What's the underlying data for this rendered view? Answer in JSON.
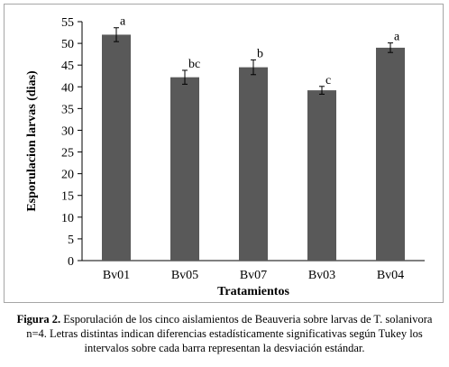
{
  "chart_data": {
    "type": "bar",
    "categories": [
      "Bv01",
      "Bv05",
      "Bv07",
      "Bv03",
      "Bv04"
    ],
    "values": [
      52.0,
      42.2,
      44.5,
      39.2,
      49.0
    ],
    "errors": [
      1.6,
      1.6,
      1.7,
      0.9,
      1.1
    ],
    "significance_letters": [
      "a",
      "bc",
      "b",
      "c",
      "a"
    ],
    "xlabel": "Tratamientos",
    "ylabel": "Esporulacion larvas (dias)",
    "ylim": [
      0,
      55
    ],
    "yticks": [
      0,
      5,
      10,
      15,
      20,
      25,
      30,
      35,
      40,
      45,
      50,
      55
    ],
    "grid": false,
    "bar_color": "#595959"
  },
  "caption": {
    "label": "Figura 2.",
    "text": " Esporulación de los cinco aislamientos de Beauveria sobre larvas de T. solanivora n=4. Letras distintas indican diferencias estadísticamente significativas según Tukey los intervalos sobre cada barra representan la desviación estándar."
  }
}
